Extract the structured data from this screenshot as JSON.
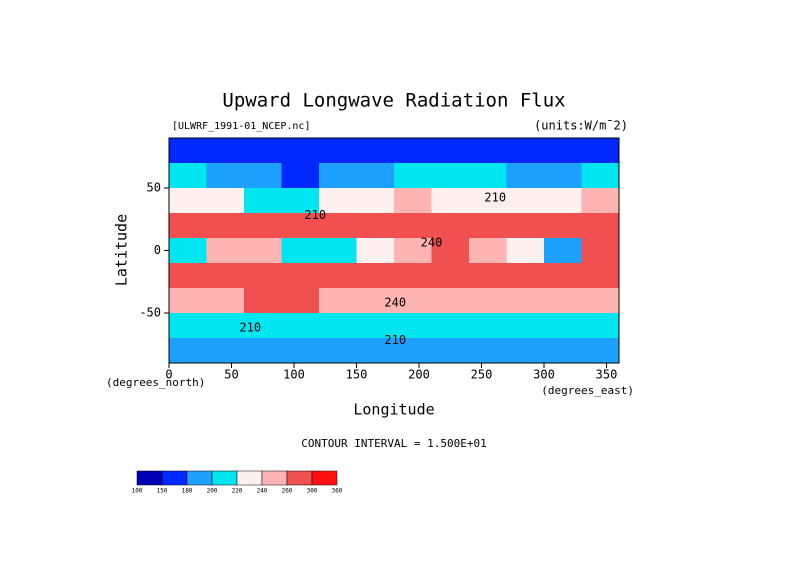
{
  "chart_data": {
    "type": "contour",
    "title": "Upward Longwave Radiation Flux",
    "subtitle": "[ULWRF_1991-01_NCEP.nc]",
    "units_label": "(units:W/m¯2)",
    "x_label": "Longitude",
    "y_label": "Latitude",
    "x_unit": "(degrees_east)",
    "y_unit": "(degrees_north)",
    "note": "CONTOUR INTERVAL = 1.500E+01",
    "xlim": [
      0,
      360
    ],
    "xticks": [
      0,
      50,
      100,
      150,
      200,
      250,
      300,
      350
    ],
    "ylim": [
      -90,
      90
    ],
    "yticks": [
      -50,
      0,
      50
    ],
    "x": [
      15,
      45,
      75,
      105,
      135,
      165,
      195,
      225,
      255,
      285,
      315,
      345
    ],
    "y": [
      80,
      60,
      40,
      20,
      0,
      -20,
      -40,
      -60,
      -80
    ],
    "values": [
      [
        165,
        160,
        160,
        165,
        170,
        170,
        165,
        160,
        160,
        155,
        160,
        165
      ],
      [
        200,
        195,
        180,
        175,
        185,
        195,
        200,
        205,
        200,
        190,
        195,
        205
      ],
      [
        235,
        225,
        215,
        210,
        225,
        235,
        240,
        235,
        225,
        220,
        230,
        240
      ],
      [
        270,
        285,
        275,
        265,
        270,
        265,
        270,
        275,
        270,
        265,
        260,
        275
      ],
      [
        215,
        240,
        250,
        205,
        210,
        225,
        250,
        265,
        255,
        235,
        195,
        265
      ],
      [
        265,
        275,
        280,
        270,
        295,
        270,
        270,
        280,
        275,
        270,
        285,
        280
      ],
      [
        250,
        255,
        265,
        260,
        255,
        250,
        240,
        245,
        250,
        245,
        255,
        255
      ],
      [
        205,
        210,
        215,
        210,
        205,
        215,
        210,
        215,
        205,
        210,
        205,
        210
      ],
      [
        185,
        190,
        185,
        180,
        190,
        185,
        185,
        180,
        185,
        190,
        185,
        180
      ]
    ],
    "levels": [
      100,
      150,
      180,
      200,
      220,
      240,
      260,
      300,
      360
    ],
    "colors": [
      "#0000b4",
      "#0028ff",
      "#1ea0ff",
      "#00e6f0",
      "#fff0f0",
      "#ffb4b4",
      "#f05050",
      "#ff1010"
    ],
    "contour_labels": [
      {
        "text": "210",
        "x": 65,
        "y": -62
      },
      {
        "text": "240",
        "x": 210,
        "y": 6
      },
      {
        "text": "240",
        "x": 181,
        "y": -42
      },
      {
        "text": "210",
        "x": 181,
        "y": -72
      },
      {
        "text": "210",
        "x": 261,
        "y": 42
      },
      {
        "text": "210",
        "x": 117,
        "y": 28
      }
    ]
  }
}
